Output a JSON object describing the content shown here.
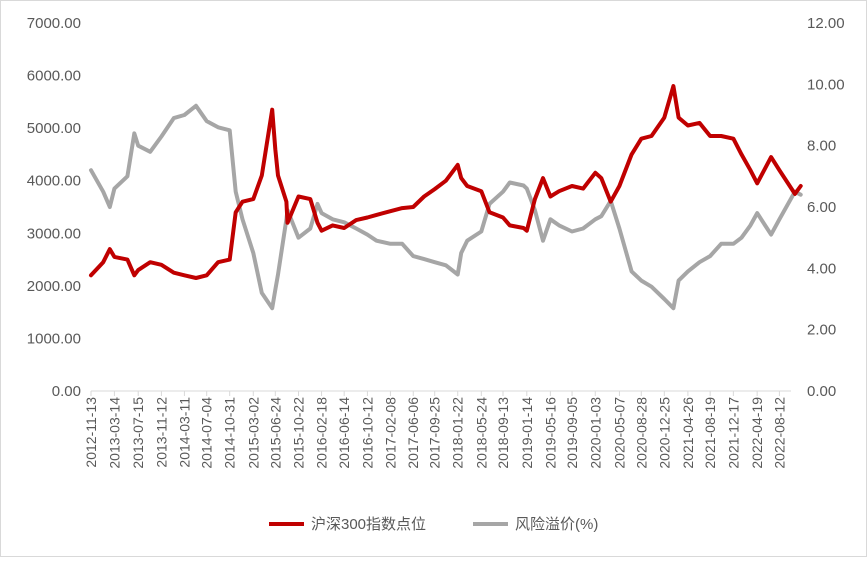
{
  "chart_data": {
    "type": "line",
    "title": "",
    "xlabel": "",
    "y_left": {
      "ticks": [
        "0.00",
        "1000.00",
        "2000.00",
        "3000.00",
        "4000.00",
        "5000.00",
        "6000.00",
        "7000.00"
      ],
      "range": [
        0,
        7000
      ]
    },
    "y_right": {
      "ticks": [
        "0.00",
        "2.00",
        "4.00",
        "6.00",
        "8.00",
        "10.00",
        "12.00"
      ],
      "range": [
        0,
        12
      ]
    },
    "x_ticks": [
      "2012-11-13",
      "2013-03-14",
      "2013-07-15",
      "2013-11-12",
      "2014-03-11",
      "2014-07-04",
      "2014-10-31",
      "2015-03-02",
      "2015-06-24",
      "2015-10-22",
      "2016-02-18",
      "2016-06-14",
      "2016-10-12",
      "2017-02-08",
      "2017-06-06",
      "2017-09-25",
      "2018-01-22",
      "2018-05-24",
      "2018-09-13",
      "2019-01-14",
      "2019-05-16",
      "2019-09-05",
      "2020-01-03",
      "2020-05-07",
      "2020-08-28",
      "2020-12-25",
      "2021-04-26",
      "2021-08-19",
      "2021-12-17",
      "2022-04-19",
      "2022-08-12"
    ],
    "legend_position": "bottom",
    "grid": false,
    "series": [
      {
        "name": "沪深300指数点位",
        "color": "#c00000",
        "axis": "left",
        "x": [
          "2012-11-13",
          "2013-01-15",
          "2013-02-18",
          "2013-03-14",
          "2013-05-20",
          "2013-06-25",
          "2013-07-15",
          "2013-09-15",
          "2013-11-12",
          "2014-01-15",
          "2014-03-11",
          "2014-05-10",
          "2014-07-04",
          "2014-09-01",
          "2014-10-31",
          "2014-12-01",
          "2015-01-05",
          "2015-03-02",
          "2015-04-15",
          "2015-06-08",
          "2015-06-24",
          "2015-07-08",
          "2015-08-20",
          "2015-08-26",
          "2015-10-22",
          "2015-12-22",
          "2016-01-28",
          "2016-02-18",
          "2016-04-15",
          "2016-06-14",
          "2016-08-15",
          "2016-10-12",
          "2016-11-28",
          "2017-02-08",
          "2017-04-10",
          "2017-06-06",
          "2017-08-01",
          "2017-09-25",
          "2017-11-22",
          "2018-01-22",
          "2018-02-09",
          "2018-03-12",
          "2018-05-24",
          "2018-07-05",
          "2018-09-13",
          "2018-10-18",
          "2018-12-28",
          "2019-01-14",
          "2019-02-25",
          "2019-04-08",
          "2019-05-16",
          "2019-06-30",
          "2019-09-05",
          "2019-11-01",
          "2020-01-03",
          "2020-02-03",
          "2020-03-23",
          "2020-05-07",
          "2020-07-09",
          "2020-08-28",
          "2020-10-20",
          "2020-12-25",
          "2021-02-10",
          "2021-03-09",
          "2021-04-26",
          "2021-06-25",
          "2021-08-19",
          "2021-10-15",
          "2021-12-17",
          "2022-01-28",
          "2022-03-15",
          "2022-04-19",
          "2022-06-30",
          "2022-08-12",
          "2022-10-31",
          "2022-11-30"
        ],
        "values": [
          2200,
          2450,
          2700,
          2550,
          2500,
          2200,
          2300,
          2450,
          2400,
          2250,
          2200,
          2150,
          2200,
          2450,
          2500,
          3400,
          3600,
          3650,
          4100,
          5350,
          4600,
          4100,
          3600,
          3200,
          3700,
          3650,
          3200,
          3050,
          3150,
          3100,
          3250,
          3300,
          3350,
          3420,
          3480,
          3500,
          3700,
          3840,
          4000,
          4300,
          4050,
          3900,
          3800,
          3400,
          3300,
          3150,
          3100,
          3050,
          3650,
          4050,
          3700,
          3800,
          3900,
          3850,
          4150,
          4050,
          3600,
          3900,
          4500,
          4800,
          4850,
          5200,
          5800,
          5200,
          5050,
          5100,
          4850,
          4850,
          4800,
          4500,
          4200,
          3950,
          4450,
          4200,
          3750,
          3900
        ]
      },
      {
        "name": "风险溢价(%)",
        "color": "#a6a6a6",
        "axis": "right",
        "x": [
          "2012-11-13",
          "2013-01-15",
          "2013-02-18",
          "2013-03-14",
          "2013-05-20",
          "2013-06-25",
          "2013-07-15",
          "2013-09-15",
          "2013-11-12",
          "2014-01-15",
          "2014-03-11",
          "2014-05-10",
          "2014-07-04",
          "2014-09-01",
          "2014-10-31",
          "2014-12-01",
          "2015-01-05",
          "2015-03-02",
          "2015-04-15",
          "2015-06-08",
          "2015-06-24",
          "2015-07-08",
          "2015-08-20",
          "2015-08-26",
          "2015-10-22",
          "2015-12-22",
          "2016-01-28",
          "2016-02-18",
          "2016-04-15",
          "2016-06-14",
          "2016-08-15",
          "2016-10-12",
          "2016-11-28",
          "2017-02-08",
          "2017-04-10",
          "2017-06-06",
          "2017-08-01",
          "2017-09-25",
          "2017-11-22",
          "2018-01-22",
          "2018-02-09",
          "2018-03-12",
          "2018-05-24",
          "2018-07-05",
          "2018-09-13",
          "2018-10-18",
          "2018-12-28",
          "2019-01-14",
          "2019-02-25",
          "2019-04-08",
          "2019-05-16",
          "2019-06-30",
          "2019-09-05",
          "2019-11-01",
          "2020-01-03",
          "2020-02-03",
          "2020-03-23",
          "2020-05-07",
          "2020-07-09",
          "2020-08-28",
          "2020-10-20",
          "2020-12-25",
          "2021-02-10",
          "2021-03-09",
          "2021-04-26",
          "2021-06-25",
          "2021-08-19",
          "2021-10-15",
          "2021-12-17",
          "2022-01-28",
          "2022-03-15",
          "2022-04-19",
          "2022-06-30",
          "2022-08-12",
          "2022-10-31",
          "2022-11-30"
        ],
        "values": [
          7.2,
          6.5,
          6.0,
          6.6,
          7.0,
          8.4,
          8.0,
          7.8,
          8.3,
          8.9,
          9.0,
          9.3,
          8.8,
          8.6,
          8.5,
          6.5,
          5.6,
          4.5,
          3.2,
          2.7,
          3.3,
          3.8,
          5.6,
          5.9,
          5.0,
          5.3,
          6.1,
          5.8,
          5.6,
          5.5,
          5.3,
          5.1,
          4.9,
          4.8,
          4.8,
          4.4,
          4.3,
          4.2,
          4.1,
          3.8,
          4.5,
          4.9,
          5.2,
          6.1,
          6.5,
          6.8,
          6.7,
          6.6,
          5.9,
          4.9,
          5.6,
          5.4,
          5.2,
          5.3,
          5.6,
          5.7,
          6.2,
          5.3,
          3.9,
          3.6,
          3.4,
          3.0,
          2.7,
          3.6,
          3.9,
          4.2,
          4.4,
          4.8,
          4.8,
          5.0,
          5.4,
          5.8,
          5.1,
          5.6,
          6.5,
          6.4
        ]
      }
    ]
  }
}
